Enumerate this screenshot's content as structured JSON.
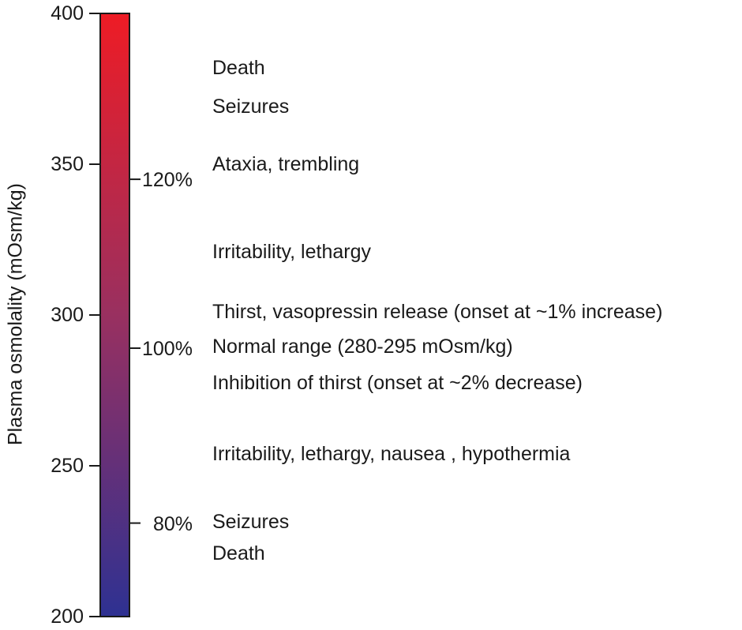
{
  "axis": {
    "title": "Plasma osmolality (mOsm/kg)",
    "min": 200,
    "max": 400,
    "ticks": [
      {
        "value": 400,
        "label": "400"
      },
      {
        "value": 350,
        "label": "350"
      },
      {
        "value": 300,
        "label": "300"
      },
      {
        "value": 250,
        "label": "250"
      },
      {
        "value": 200,
        "label": "200"
      }
    ]
  },
  "percent_marks": [
    {
      "value": 345,
      "label": "120%"
    },
    {
      "value": 289,
      "label": "100%"
    },
    {
      "value": 231,
      "label": "80%"
    }
  ],
  "annotations": [
    {
      "value": 382,
      "label": "Death"
    },
    {
      "value": 369,
      "label": "Seizures"
    },
    {
      "value": 350,
      "label": "Ataxia, trembling"
    },
    {
      "value": 321,
      "label": "Irritability, lethargy"
    },
    {
      "value": 301,
      "label": "Thirst, vasopressin release (onset at ~1% increase)"
    },
    {
      "value": 289.5,
      "label": "Normal range (280-295 mOsm/kg)"
    },
    {
      "value": 277.5,
      "label": "Inhibition of thirst (onset at ~2% decrease)"
    },
    {
      "value": 254,
      "label": "Irritability, lethargy, nausea , hypothermia"
    },
    {
      "value": 231.5,
      "label": "Seizures"
    },
    {
      "value": 221,
      "label": "Death"
    }
  ],
  "gradient": {
    "top_color": "#ee1c25",
    "mid_color": "#993060",
    "bottom_color": "#2e3192"
  }
}
